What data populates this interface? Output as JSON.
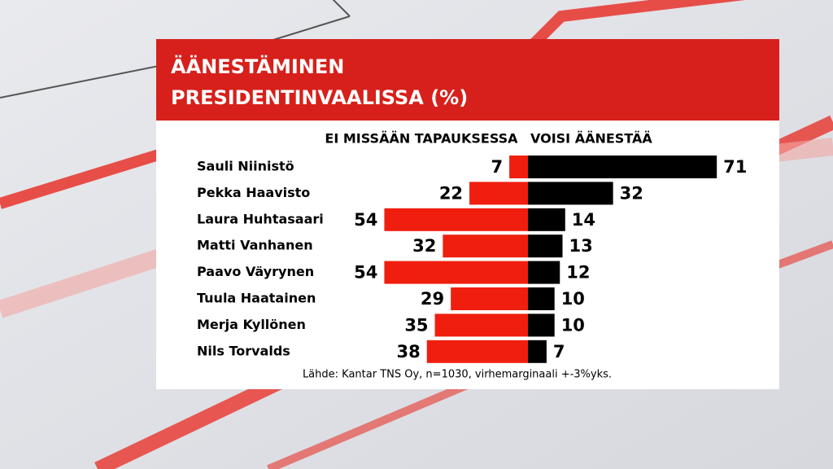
{
  "chart_data": {
    "type": "bar",
    "orientation": "horizontal",
    "layout": "diverging",
    "title": "ÄÄNESTÄMINEN PRESIDENTINVAALISSA (%)",
    "categories": [
      "Sauli Niinistö",
      "Pekka Haavisto",
      "Laura Huhtasaari",
      "Matti Vanhanen",
      "Paavo Väyrynen",
      "Tuula Haatainen",
      "Merja Kyllönen",
      "Nils Torvalds"
    ],
    "series": [
      {
        "name": "EI MISSÄÄN TAPAUKSESSA",
        "color": "#f01e0f",
        "values": [
          7,
          22,
          54,
          32,
          54,
          29,
          35,
          38
        ]
      },
      {
        "name": "VOISI ÄÄNESTÄÄ",
        "color": "#000000",
        "values": [
          71,
          32,
          14,
          13,
          12,
          10,
          10,
          7
        ]
      }
    ],
    "note": "Lähde: Kantar TNS Oy, n=1030, virhemarginaali +-3%yks."
  }
}
